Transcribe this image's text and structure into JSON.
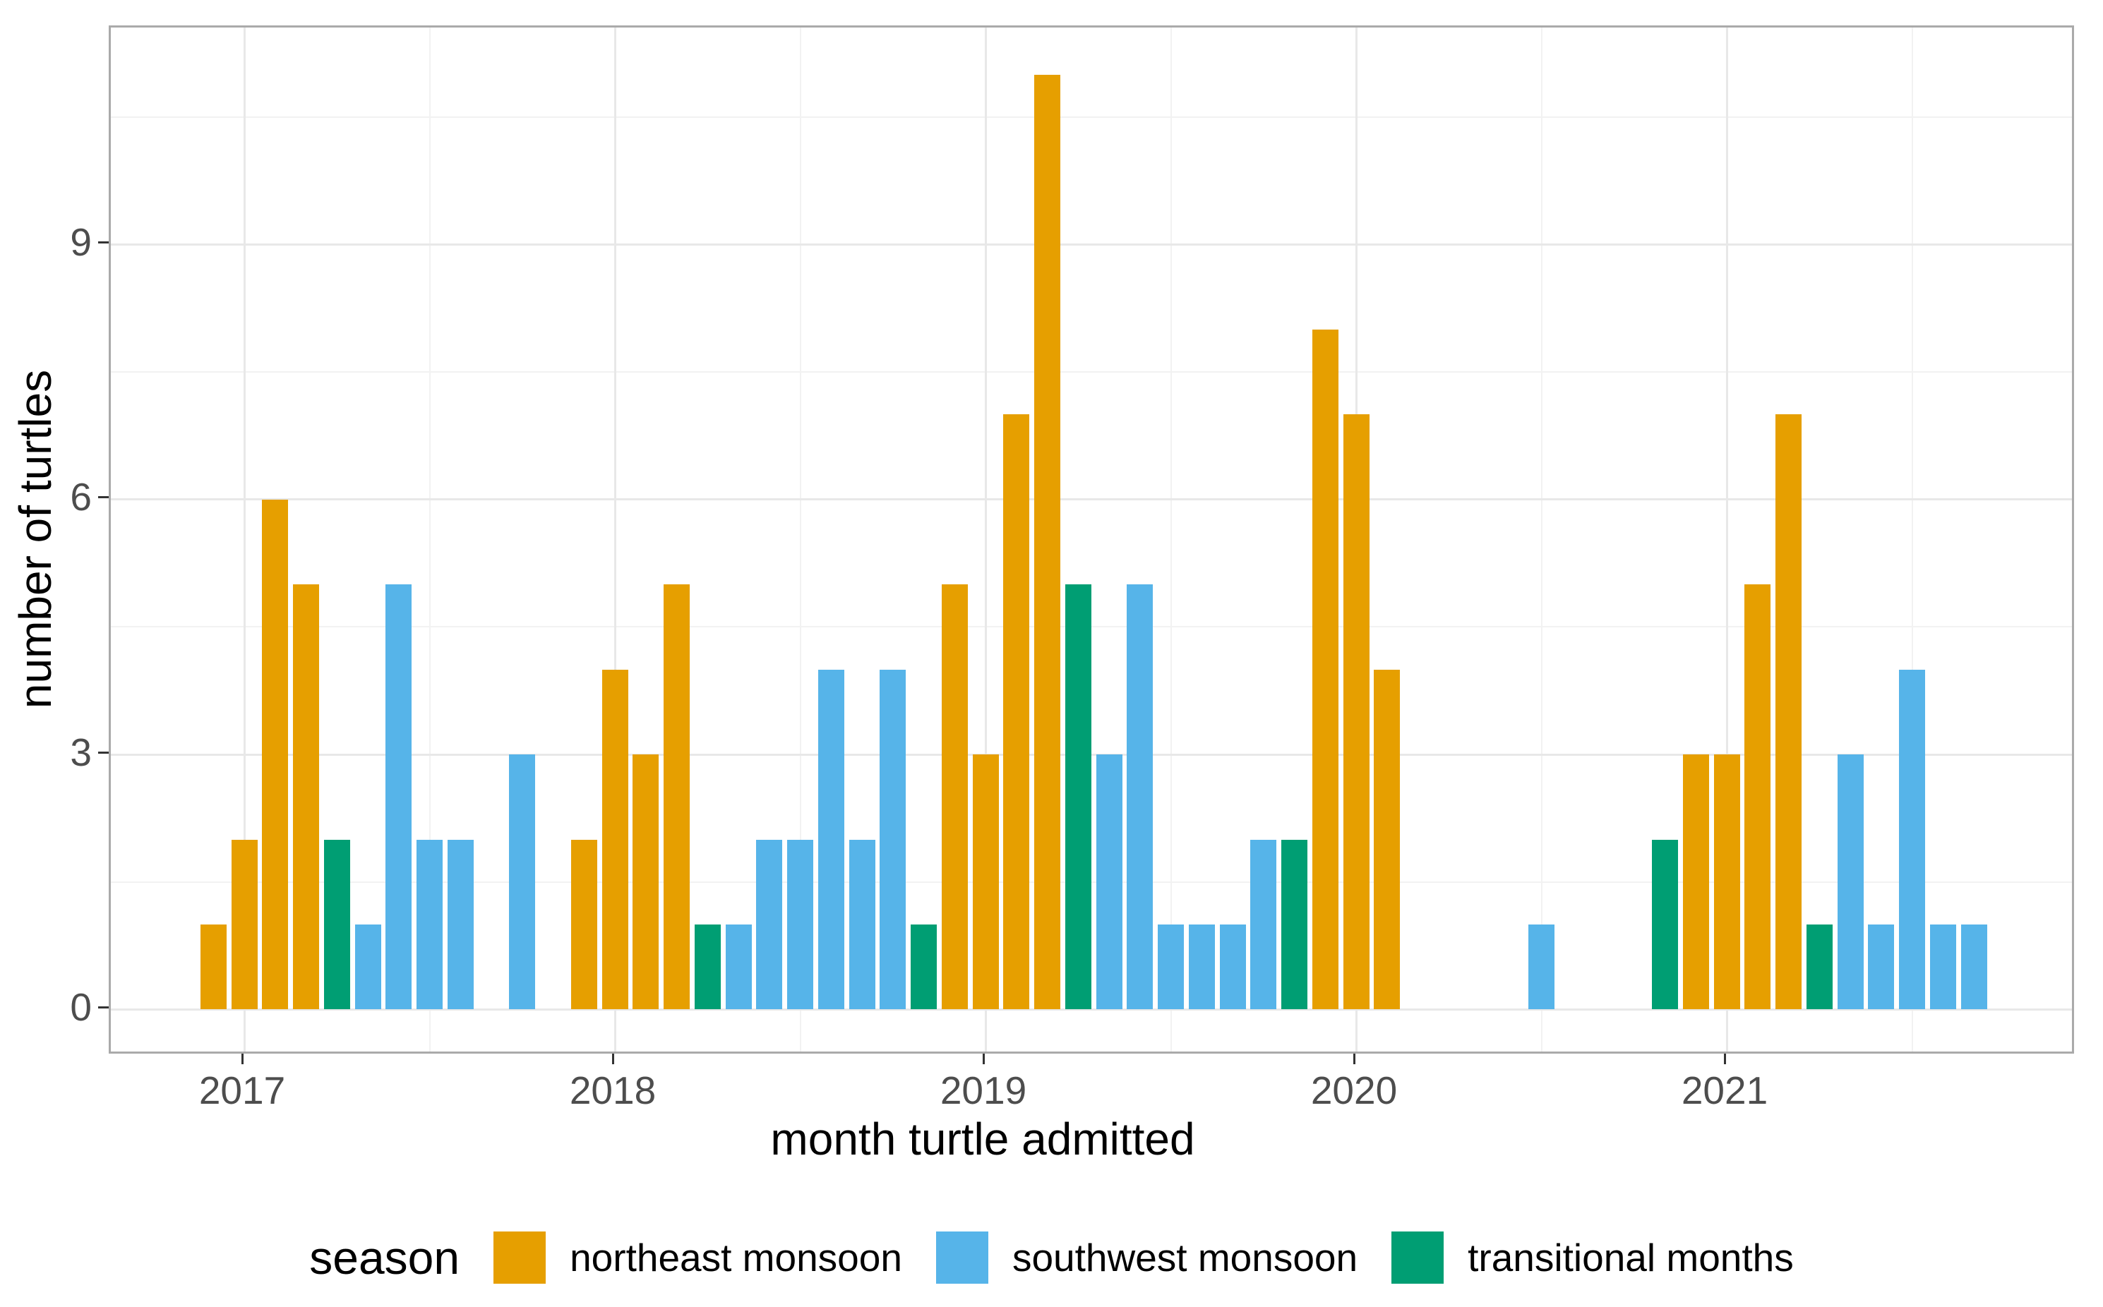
{
  "chart_data": {
    "type": "bar",
    "title": "",
    "xlabel": "month turtle admitted",
    "ylabel": "number of turtles",
    "x_tick_labels": [
      "2017",
      "2018",
      "2019",
      "2020",
      "2021"
    ],
    "y_tick_labels": [
      "0",
      "3",
      "6",
      "9"
    ],
    "y_major_gridlines": [
      0,
      3,
      6,
      9
    ],
    "y_minor_gridlines": [
      1.5,
      4.5,
      7.5,
      10.5
    ],
    "ylim": [
      -0.55,
      11.55
    ],
    "grid": "on",
    "legend_position": "bottom",
    "legend_title": "season",
    "legend": [
      {
        "label": "northeast monsoon",
        "color": "#E69F00"
      },
      {
        "label": "southwest monsoon",
        "color": "#56B4E9"
      },
      {
        "label": "transitional months",
        "color": "#009E73"
      }
    ],
    "bars": [
      {
        "month": "2016-12",
        "count": 1,
        "season": "northeast monsoon"
      },
      {
        "month": "2017-01",
        "count": 2,
        "season": "northeast monsoon"
      },
      {
        "month": "2017-02",
        "count": 6,
        "season": "northeast monsoon"
      },
      {
        "month": "2017-03",
        "count": 5,
        "season": "northeast monsoon"
      },
      {
        "month": "2017-04",
        "count": 2,
        "season": "transitional months"
      },
      {
        "month": "2017-05",
        "count": 1,
        "season": "southwest monsoon"
      },
      {
        "month": "2017-06",
        "count": 5,
        "season": "southwest monsoon"
      },
      {
        "month": "2017-07",
        "count": 2,
        "season": "southwest monsoon"
      },
      {
        "month": "2017-08",
        "count": 2,
        "season": "southwest monsoon"
      },
      {
        "month": "2017-10",
        "count": 3,
        "season": "southwest monsoon"
      },
      {
        "month": "2017-12",
        "count": 2,
        "season": "northeast monsoon"
      },
      {
        "month": "2018-01",
        "count": 4,
        "season": "northeast monsoon"
      },
      {
        "month": "2018-02",
        "count": 3,
        "season": "northeast monsoon"
      },
      {
        "month": "2018-03",
        "count": 5,
        "season": "northeast monsoon"
      },
      {
        "month": "2018-04",
        "count": 1,
        "season": "transitional months"
      },
      {
        "month": "2018-05",
        "count": 1,
        "season": "southwest monsoon"
      },
      {
        "month": "2018-06",
        "count": 2,
        "season": "southwest monsoon"
      },
      {
        "month": "2018-07",
        "count": 2,
        "season": "southwest monsoon"
      },
      {
        "month": "2018-08",
        "count": 4,
        "season": "southwest monsoon"
      },
      {
        "month": "2018-09",
        "count": 2,
        "season": "southwest monsoon"
      },
      {
        "month": "2018-10",
        "count": 4,
        "season": "southwest monsoon"
      },
      {
        "month": "2018-11",
        "count": 1,
        "season": "transitional months"
      },
      {
        "month": "2018-12",
        "count": 5,
        "season": "northeast monsoon"
      },
      {
        "month": "2019-01",
        "count": 3,
        "season": "northeast monsoon"
      },
      {
        "month": "2019-02",
        "count": 7,
        "season": "northeast monsoon"
      },
      {
        "month": "2019-03",
        "count": 11,
        "season": "northeast monsoon"
      },
      {
        "month": "2019-04",
        "count": 5,
        "season": "transitional months"
      },
      {
        "month": "2019-05",
        "count": 3,
        "season": "southwest monsoon"
      },
      {
        "month": "2019-06",
        "count": 5,
        "season": "southwest monsoon"
      },
      {
        "month": "2019-07",
        "count": 1,
        "season": "southwest monsoon"
      },
      {
        "month": "2019-08",
        "count": 1,
        "season": "southwest monsoon"
      },
      {
        "month": "2019-09",
        "count": 1,
        "season": "southwest monsoon"
      },
      {
        "month": "2019-10",
        "count": 2,
        "season": "southwest monsoon"
      },
      {
        "month": "2019-11",
        "count": 2,
        "season": "transitional months"
      },
      {
        "month": "2019-12",
        "count": 8,
        "season": "northeast monsoon"
      },
      {
        "month": "2020-01",
        "count": 7,
        "season": "northeast monsoon"
      },
      {
        "month": "2020-02",
        "count": 4,
        "season": "northeast monsoon"
      },
      {
        "month": "2020-07",
        "count": 1,
        "season": "southwest monsoon"
      },
      {
        "month": "2020-11",
        "count": 2,
        "season": "transitional months"
      },
      {
        "month": "2020-12",
        "count": 3,
        "season": "northeast monsoon"
      },
      {
        "month": "2021-01",
        "count": 3,
        "season": "northeast monsoon"
      },
      {
        "month": "2021-02",
        "count": 5,
        "season": "northeast monsoon"
      },
      {
        "month": "2021-03",
        "count": 7,
        "season": "northeast monsoon"
      },
      {
        "month": "2021-04",
        "count": 1,
        "season": "transitional months"
      },
      {
        "month": "2021-05",
        "count": 3,
        "season": "southwest monsoon"
      },
      {
        "month": "2021-06",
        "count": 1,
        "season": "southwest monsoon"
      },
      {
        "month": "2021-07",
        "count": 4,
        "season": "southwest monsoon"
      },
      {
        "month": "2021-08",
        "count": 1,
        "season": "southwest monsoon"
      },
      {
        "month": "2021-09",
        "count": 1,
        "season": "southwest monsoon"
      }
    ]
  },
  "colors": {
    "background": "#FFFFFF",
    "panel_border": "#AAAAAA",
    "grid_major": "#E8E8E8",
    "grid_minor": "#F2F2F2",
    "tick_mark": "#333333",
    "tick_label": "#4D4D4D",
    "axis_title": "#000000"
  }
}
